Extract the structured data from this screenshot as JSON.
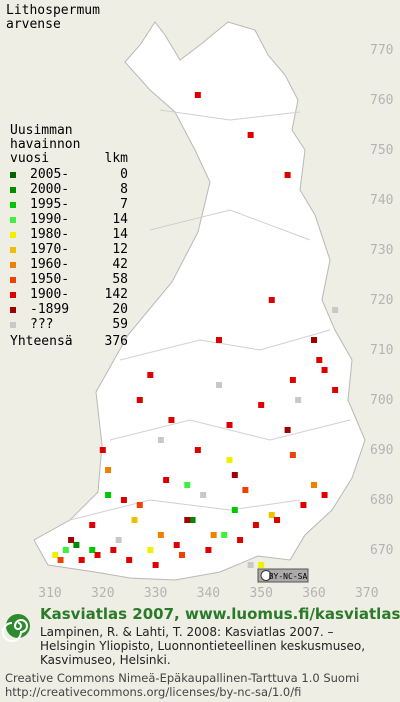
{
  "title": [
    "Lithospermum",
    "arvense"
  ],
  "legend": {
    "header": [
      "Uusimman",
      "havainnon",
      "vuosi"
    ],
    "count_header": "lkm",
    "entries": [
      {
        "label": "2005-",
        "count": 0,
        "color": "#006400",
        "squares": []
      },
      {
        "label": "2000-",
        "count": 8,
        "color": "#008c00",
        "squares": [
          [
            315,
            671
          ],
          [
            337,
            676
          ]
        ]
      },
      {
        "label": "1995-",
        "count": 7,
        "color": "#00c800",
        "squares": [
          [
            321,
            681
          ],
          [
            318,
            670
          ],
          [
            345,
            678
          ]
        ]
      },
      {
        "label": "1990-",
        "count": 14,
        "color": "#3cf03c",
        "squares": [
          [
            313,
            670
          ],
          [
            343,
            673
          ],
          [
            336,
            683
          ]
        ]
      },
      {
        "label": "1980-",
        "count": 14,
        "color": "#f0f000",
        "squares": [
          [
            311,
            669
          ],
          [
            329,
            670
          ],
          [
            344,
            688
          ],
          [
            350,
            667
          ]
        ]
      },
      {
        "label": "1970-",
        "count": 12,
        "color": "#f0c000",
        "squares": [
          [
            326,
            676
          ],
          [
            352,
            677
          ]
        ]
      },
      {
        "label": "1960-",
        "count": 42,
        "color": "#f08000",
        "squares": [
          [
            321,
            686
          ],
          [
            341,
            673
          ],
          [
            360,
            683
          ],
          [
            331,
            673
          ]
        ]
      },
      {
        "label": "1950-",
        "count": 58,
        "color": "#f04000",
        "squares": [
          [
            312,
            668
          ],
          [
            327,
            679
          ],
          [
            356,
            689
          ],
          [
            347,
            682
          ],
          [
            335,
            669
          ]
        ]
      },
      {
        "label": "1900-",
        "count": 142,
        "color": "#dc0000",
        "squares": [
          [
            316,
            668
          ],
          [
            319,
            669
          ],
          [
            322,
            670
          ],
          [
            325,
            668
          ],
          [
            330,
            667
          ],
          [
            334,
            671
          ],
          [
            340,
            670
          ],
          [
            346,
            672
          ],
          [
            349,
            675
          ],
          [
            353,
            676
          ],
          [
            358,
            679
          ],
          [
            362,
            681
          ],
          [
            318,
            675
          ],
          [
            324,
            680
          ],
          [
            332,
            684
          ],
          [
            338,
            690
          ],
          [
            344,
            695
          ],
          [
            350,
            699
          ],
          [
            356,
            704
          ],
          [
            362,
            706
          ],
          [
            364,
            702
          ],
          [
            361,
            708
          ],
          [
            333,
            696
          ],
          [
            329,
            705
          ],
          [
            342,
            712
          ],
          [
            352,
            720
          ],
          [
            355,
            745
          ],
          [
            348,
            753
          ],
          [
            338,
            761
          ],
          [
            320,
            690
          ],
          [
            327,
            700
          ]
        ]
      },
      {
        "label": "-1899",
        "count": 20,
        "color": "#a00000",
        "squares": [
          [
            314,
            672
          ],
          [
            336,
            676
          ],
          [
            345,
            685
          ],
          [
            355,
            694
          ],
          [
            360,
            712
          ]
        ]
      },
      {
        "label": "???",
        "count": 59,
        "color": "#c8c8c8",
        "squares": [
          [
            323,
            672
          ],
          [
            339,
            681
          ],
          [
            348,
            667
          ],
          [
            357,
            700
          ],
          [
            364,
            718
          ],
          [
            331,
            692
          ],
          [
            342,
            703
          ]
        ]
      }
    ],
    "total_label": "Yhteensä",
    "total": 376
  },
  "yticks": [
    770,
    760,
    750,
    740,
    730,
    720,
    710,
    700,
    690,
    680,
    670
  ],
  "xticks": [
    310,
    320,
    330,
    340,
    350,
    360,
    370
  ],
  "cc_badge": "BY-NC-SA",
  "footer": {
    "heading": "Kasviatlas 2007, www.luomus.fi/kasviatlas",
    "citation": [
      "Lampinen, R. & Lahti, T. 2008: Kasviatlas 2007. –",
      "Helsingin Yliopisto, Luonnontieteellinen keskusmuseo,",
      "Kasvimuseo, Helsinki."
    ],
    "license": [
      "Creative Commons Nimeä-Epäkaupallinen-Tarttuva 1.0 Suomi",
      "http://creativecommons.org/licenses/by-nc-sa/1.0/fi"
    ]
  }
}
